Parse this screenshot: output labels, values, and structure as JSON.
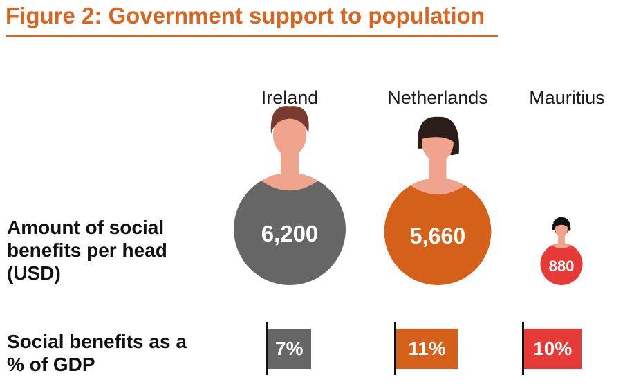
{
  "title": "Figure 2: Government support to population",
  "row_labels": {
    "benefits_per_head": "Amount of social benefits per head (USD)",
    "benefits_pct_gdp": "Social benefits as a % of GDP"
  },
  "chart_data": {
    "type": "bar",
    "categories": [
      "Ireland",
      "Netherlands",
      "Mauritius"
    ],
    "series": [
      {
        "name": "Amount of social benefits per head (USD)",
        "values": [
          6200,
          5660,
          880
        ],
        "labels": [
          "6,200",
          "5,660",
          "880"
        ]
      },
      {
        "name": "Social benefits as a % of GDP",
        "values": [
          7,
          11,
          10
        ],
        "labels": [
          "7%",
          "11%",
          "10%"
        ]
      }
    ],
    "colors": [
      "#666666",
      "#d4601a",
      "#e63a36"
    ],
    "skin_color": "#f0a48e",
    "hair_colors": [
      "#7a3a30",
      "#2b1d17",
      "#111111"
    ],
    "hair_styles": [
      "short-hair-icon",
      "bob-hair-icon",
      "curly-hair-icon"
    ]
  }
}
